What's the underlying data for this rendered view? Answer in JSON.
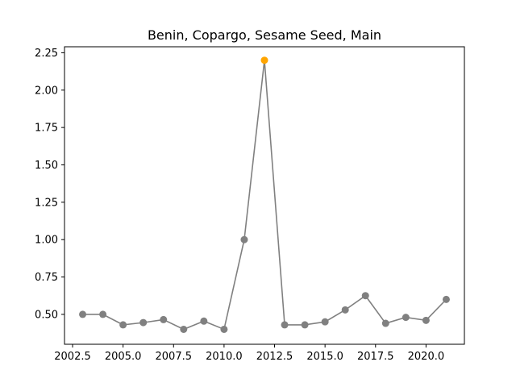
{
  "chart_data": {
    "type": "line",
    "title": "Benin, Copargo, Sesame Seed, Main",
    "xlabel": "",
    "ylabel": "",
    "xlim": [
      2002.1,
      2021.9
    ],
    "ylim": [
      0.3,
      2.29
    ],
    "x_ticks": [
      2002.5,
      2005.0,
      2007.5,
      2010.0,
      2012.5,
      2015.0,
      2017.5,
      2020.0
    ],
    "x_tick_labels": [
      "2002.5",
      "2005.0",
      "2007.5",
      "2010.0",
      "2012.5",
      "2015.0",
      "2017.5",
      "2020.0"
    ],
    "y_ticks": [
      0.5,
      0.75,
      1.0,
      1.25,
      1.5,
      1.75,
      2.0,
      2.25
    ],
    "y_tick_labels": [
      "0.50",
      "0.75",
      "1.00",
      "1.25",
      "1.50",
      "1.75",
      "2.00",
      "2.25"
    ],
    "grid": false,
    "series": [
      {
        "color": "#808080",
        "highlight_color": "#FFA500",
        "highlight_index": 9,
        "x": [
          2003,
          2004,
          2005,
          2006,
          2007,
          2008,
          2009,
          2010,
          2011,
          2012,
          2013,
          2014,
          2015,
          2016,
          2017,
          2018,
          2019,
          2020,
          2021
        ],
        "y": [
          0.5,
          0.5,
          0.43,
          0.445,
          0.465,
          0.4,
          0.455,
          0.4,
          1.0,
          2.2,
          0.43,
          0.43,
          0.45,
          0.53,
          0.625,
          0.44,
          0.48,
          0.46,
          0.6
        ]
      }
    ]
  }
}
